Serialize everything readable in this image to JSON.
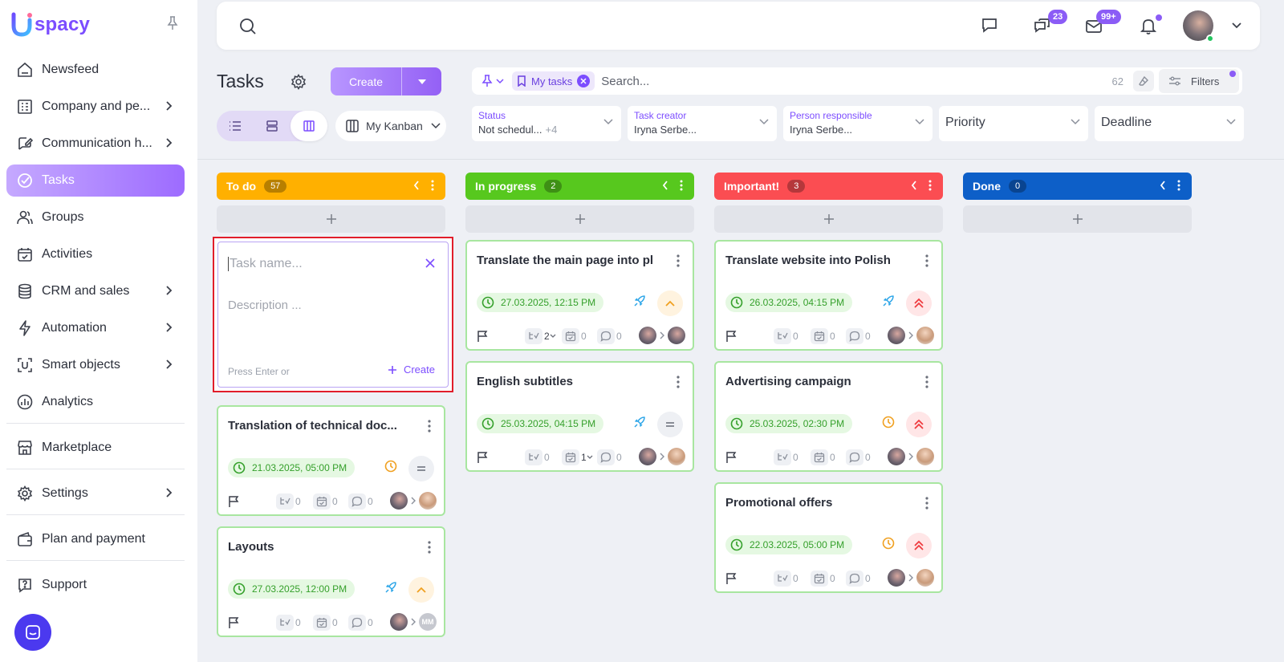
{
  "app": {
    "name": "spacy"
  },
  "sidebar": {
    "items": [
      {
        "id": "newsfeed",
        "label": "Newsfeed",
        "icon": "home-icon",
        "arrow": false
      },
      {
        "id": "company",
        "label": "Company and pe...",
        "icon": "building-icon",
        "arrow": true
      },
      {
        "id": "communication",
        "label": "Communication h...",
        "icon": "chat-edit-icon",
        "arrow": true
      },
      {
        "id": "tasks",
        "label": "Tasks",
        "icon": "check-circle-icon",
        "arrow": false,
        "active": true
      },
      {
        "id": "groups",
        "label": "Groups",
        "icon": "users-icon",
        "arrow": false
      },
      {
        "id": "activities",
        "label": "Activities",
        "icon": "calendar-icon",
        "arrow": false
      },
      {
        "id": "crm",
        "label": "CRM and sales",
        "icon": "database-icon",
        "arrow": true
      },
      {
        "id": "automation",
        "label": "Automation",
        "icon": "bolt-icon",
        "arrow": true
      },
      {
        "id": "smart",
        "label": "Smart objects",
        "icon": "smart-objects-icon",
        "arrow": true
      },
      {
        "id": "analytics",
        "label": "Analytics",
        "icon": "chart-icon",
        "arrow": false
      },
      {
        "id": "marketplace",
        "label": "Marketplace",
        "icon": "store-icon",
        "arrow": false
      },
      {
        "id": "settings",
        "label": "Settings",
        "icon": "gear-icon",
        "arrow": true
      },
      {
        "id": "plan",
        "label": "Plan and payment",
        "icon": "wallet-icon",
        "arrow": false
      },
      {
        "id": "support",
        "label": "Support",
        "icon": "help-icon",
        "arrow": false
      }
    ]
  },
  "topbar": {
    "chat_badge": "23",
    "mail_badge": "99+"
  },
  "header": {
    "title": "Tasks",
    "create_label": "Create",
    "kanban_label": "My Kanban"
  },
  "search": {
    "tag": "My tasks",
    "placeholder": "Search...",
    "count": "62",
    "filters_label": "Filters"
  },
  "filters": {
    "status": {
      "label": "Status",
      "value": "Not schedul...",
      "more": "+4"
    },
    "creator": {
      "label": "Task creator",
      "value": "Iryna Serbe..."
    },
    "responsible": {
      "label": "Person responsible",
      "value": "Iryna Serbe..."
    },
    "priority": {
      "value": "Priority"
    },
    "deadline": {
      "value": "Deadline"
    }
  },
  "new_task": {
    "name_placeholder": "Task name...",
    "desc_placeholder": "Description ...",
    "hint": "Press Enter or",
    "create_label": "Create"
  },
  "columns": [
    {
      "title": "To do",
      "count": "57",
      "color": "#ffb000",
      "cards": [
        {
          "title": "Translation of technical doc...",
          "date": "21.03.2025, 05:00 PM",
          "status": "clock-orange",
          "priority": "equal",
          "sub": "0",
          "act": "0",
          "com": "0",
          "to": "light"
        },
        {
          "title": "Layouts",
          "date": "27.03.2025, 12:00 PM",
          "status": "rocket",
          "priority": "up",
          "sub": "0",
          "act": "0",
          "com": "0",
          "to": "mm",
          "to_text": "MM"
        }
      ]
    },
    {
      "title": "In progress",
      "count": "2",
      "color": "#57c81e",
      "cards": [
        {
          "title": "Translate the main page into pl",
          "date": "27.03.2025, 12:15 PM",
          "status": "rocket",
          "priority": "up",
          "sub": "2",
          "sub_drop": true,
          "act": "0",
          "com": "0",
          "to": "dark"
        },
        {
          "title": "English subtitles",
          "date": "25.03.2025, 04:15 PM",
          "status": "rocket",
          "priority": "equal",
          "sub": "0",
          "act": "1",
          "act_drop": true,
          "com": "0",
          "to": "light"
        }
      ]
    },
    {
      "title": "Important!",
      "count": "3",
      "color": "#fb4d52",
      "cards": [
        {
          "title": "Translate website into Polish",
          "date": "26.03.2025, 04:15 PM",
          "status": "rocket",
          "priority": "double-up",
          "sub": "0",
          "act": "0",
          "com": "0",
          "to": "light"
        },
        {
          "title": "Advertising campaign",
          "date": "25.03.2025, 02:30 PM",
          "status": "clock-orange",
          "priority": "double-up",
          "sub": "0",
          "act": "0",
          "com": "0",
          "to": "light"
        },
        {
          "title": "Promotional offers",
          "date": "22.03.2025, 05:00 PM",
          "status": "clock-orange",
          "priority": "double-up",
          "sub": "0",
          "act": "0",
          "com": "0",
          "to": "light"
        }
      ]
    },
    {
      "title": "Done",
      "count": "0",
      "color": "#0d5fc8",
      "cards": []
    }
  ]
}
